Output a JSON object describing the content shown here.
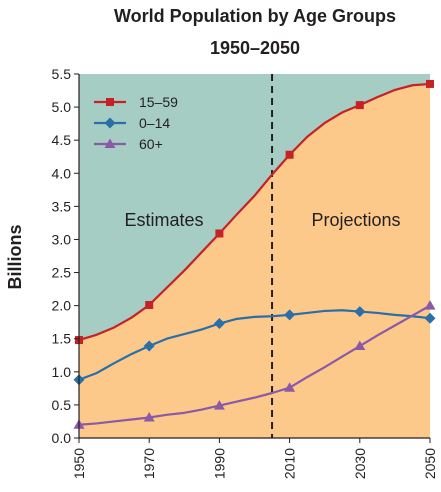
{
  "chart_data": {
    "type": "area",
    "title": "World Population by Age Groups",
    "subtitle": "1950–2050",
    "ylabel": "Billions",
    "xlabel": "",
    "x_ticks": [
      "1950",
      "1970",
      "1990",
      "2010",
      "2030",
      "2050"
    ],
    "y_ticks": [
      "0.0",
      "0.5",
      "1.0",
      "1.5",
      "2.0",
      "2.5",
      "3.0",
      "3.5",
      "4.0",
      "4.5",
      "5.0",
      "5.5"
    ],
    "xlim": [
      1950,
      2050
    ],
    "ylim": [
      0,
      5.5
    ],
    "grid": false,
    "legend_position": "top-left",
    "divider_x": 2005,
    "region_labels": {
      "left": "Estimates",
      "right": "Projections"
    },
    "background_color": "#a6cdc3",
    "area_fill_color": "#fdc98a",
    "series": [
      {
        "name": "15–59",
        "color": "#c52127",
        "marker": "square",
        "marker_x": [
          1950,
          1970,
          1990,
          2010,
          2030,
          2050
        ],
        "points": [
          [
            1950,
            1.48
          ],
          [
            1955,
            1.56
          ],
          [
            1960,
            1.67
          ],
          [
            1965,
            1.82
          ],
          [
            1970,
            2.01
          ],
          [
            1975,
            2.27
          ],
          [
            1980,
            2.53
          ],
          [
            1985,
            2.81
          ],
          [
            1990,
            3.09
          ],
          [
            1995,
            3.38
          ],
          [
            2000,
            3.66
          ],
          [
            2005,
            3.98
          ],
          [
            2010,
            4.28
          ],
          [
            2015,
            4.55
          ],
          [
            2020,
            4.76
          ],
          [
            2025,
            4.92
          ],
          [
            2030,
            5.03
          ],
          [
            2035,
            5.15
          ],
          [
            2040,
            5.26
          ],
          [
            2045,
            5.33
          ],
          [
            2050,
            5.35
          ]
        ]
      },
      {
        "name": "0–14",
        "color": "#2a6fa8",
        "marker": "diamond",
        "marker_x": [
          1950,
          1970,
          1990,
          2010,
          2030,
          2050
        ],
        "points": [
          [
            1950,
            0.88
          ],
          [
            1955,
            0.98
          ],
          [
            1960,
            1.13
          ],
          [
            1965,
            1.27
          ],
          [
            1970,
            1.39
          ],
          [
            1975,
            1.5
          ],
          [
            1980,
            1.57
          ],
          [
            1985,
            1.64
          ],
          [
            1990,
            1.73
          ],
          [
            1995,
            1.8
          ],
          [
            2000,
            1.83
          ],
          [
            2005,
            1.84
          ],
          [
            2010,
            1.86
          ],
          [
            2015,
            1.89
          ],
          [
            2020,
            1.92
          ],
          [
            2025,
            1.93
          ],
          [
            2030,
            1.91
          ],
          [
            2035,
            1.89
          ],
          [
            2040,
            1.86
          ],
          [
            2045,
            1.84
          ],
          [
            2050,
            1.81
          ]
        ]
      },
      {
        "name": "60+",
        "color": "#8a5aa8",
        "marker": "triangle",
        "marker_x": [
          1950,
          1970,
          1990,
          2010,
          2030,
          2050
        ],
        "points": [
          [
            1950,
            0.2
          ],
          [
            1955,
            0.22
          ],
          [
            1960,
            0.25
          ],
          [
            1965,
            0.28
          ],
          [
            1970,
            0.31
          ],
          [
            1975,
            0.35
          ],
          [
            1980,
            0.38
          ],
          [
            1985,
            0.43
          ],
          [
            1990,
            0.49
          ],
          [
            1995,
            0.55
          ],
          [
            2000,
            0.61
          ],
          [
            2005,
            0.68
          ],
          [
            2010,
            0.76
          ],
          [
            2015,
            0.92
          ],
          [
            2020,
            1.07
          ],
          [
            2025,
            1.23
          ],
          [
            2030,
            1.39
          ],
          [
            2035,
            1.55
          ],
          [
            2040,
            1.7
          ],
          [
            2045,
            1.85
          ],
          [
            2050,
            2.0
          ]
        ]
      }
    ]
  }
}
